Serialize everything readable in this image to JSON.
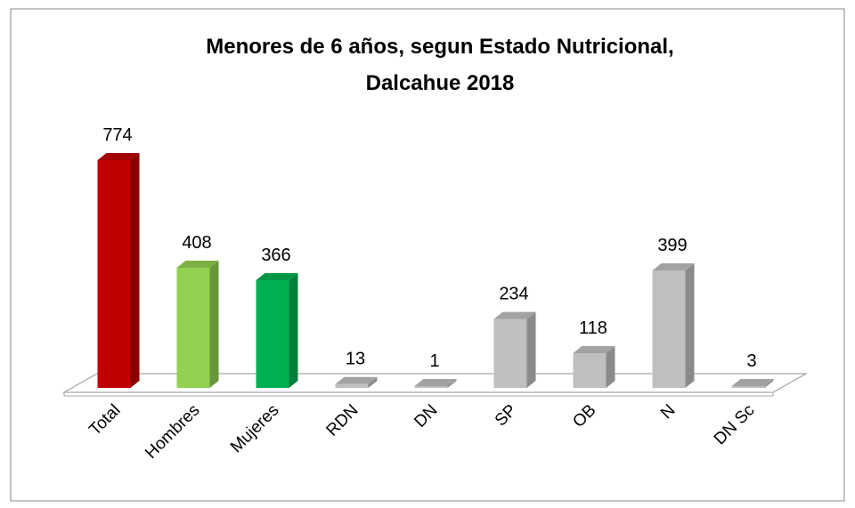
{
  "chart_data": {
    "type": "bar",
    "title": "Menores de 6 años, segun Estado Nutricional,",
    "subtitle": "Dalcahue 2018",
    "categories": [
      "Total",
      "Hombres",
      "Mujeres",
      "RDN",
      "DN",
      "SP",
      "OB",
      "N",
      "DN Sc"
    ],
    "values": [
      774,
      408,
      366,
      13,
      1,
      234,
      118,
      399,
      3
    ],
    "colors": [
      "#c00000",
      "#92d050",
      "#00b050",
      "#bfbfbf",
      "#bfbfbf",
      "#bfbfbf",
      "#bfbfbf",
      "#bfbfbf",
      "#bfbfbf"
    ]
  }
}
